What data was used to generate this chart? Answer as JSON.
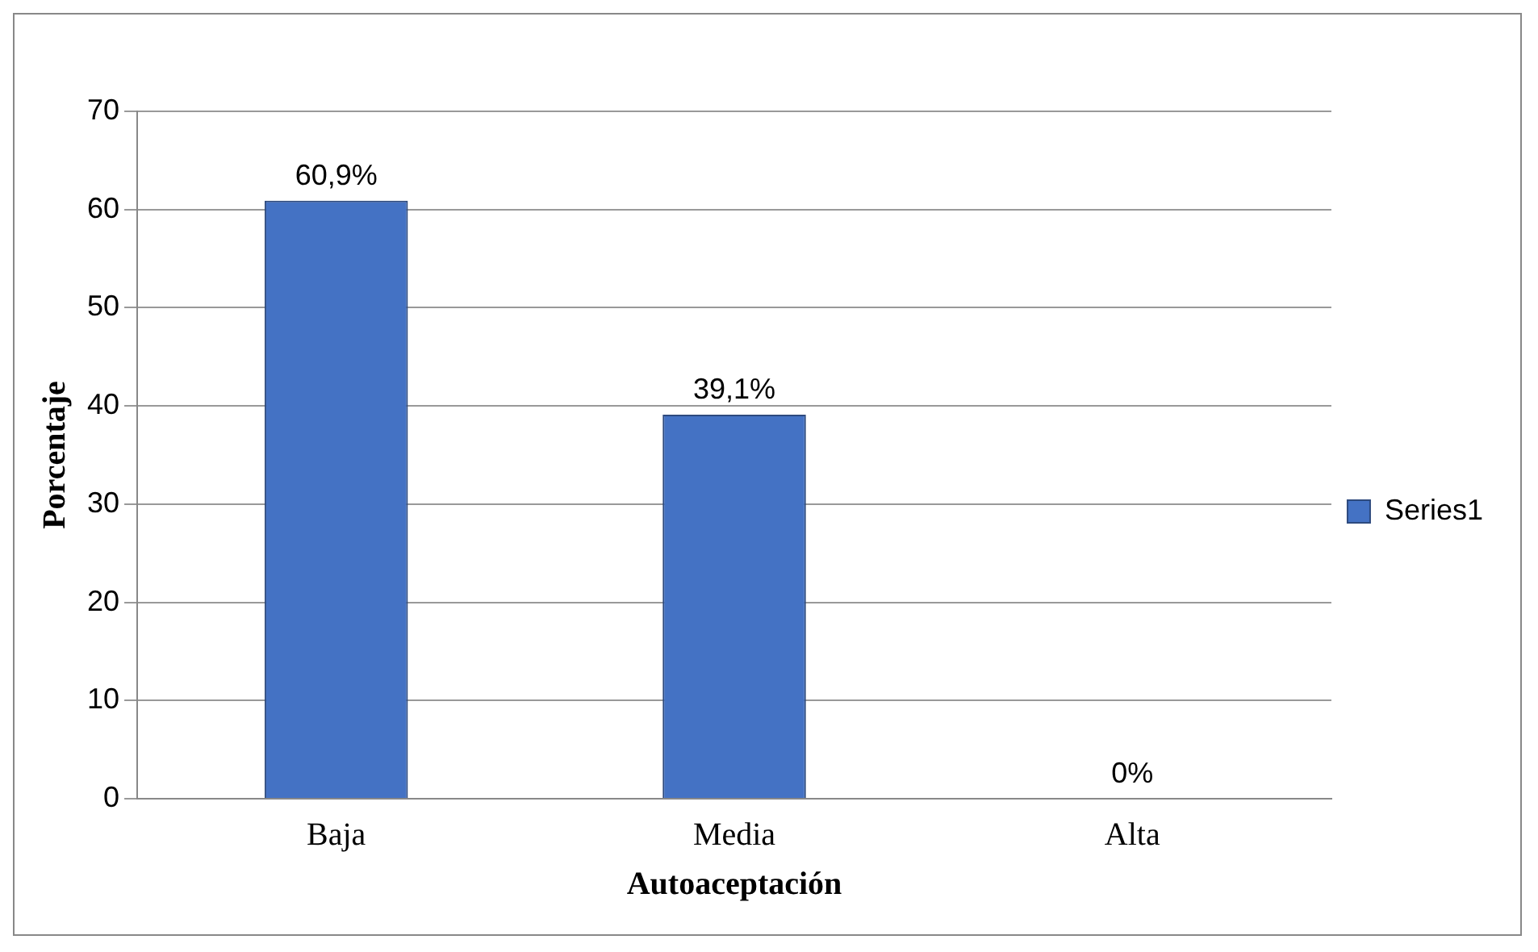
{
  "chart_data": {
    "type": "bar",
    "xlabel": "Autoaceptación",
    "ylabel": "Porcentaje",
    "categories": [
      "Baja",
      "Media",
      "Alta"
    ],
    "series": [
      {
        "name": "Series1",
        "color": "#4472c4",
        "values": [
          60.9,
          39.1,
          0
        ],
        "value_labels": [
          "60,9%",
          "39,1%",
          "0%"
        ]
      }
    ],
    "ylim": [
      0,
      70
    ],
    "yticks": [
      0,
      10,
      20,
      30,
      40,
      50,
      60,
      70
    ],
    "grid": "y",
    "legend": "right"
  }
}
